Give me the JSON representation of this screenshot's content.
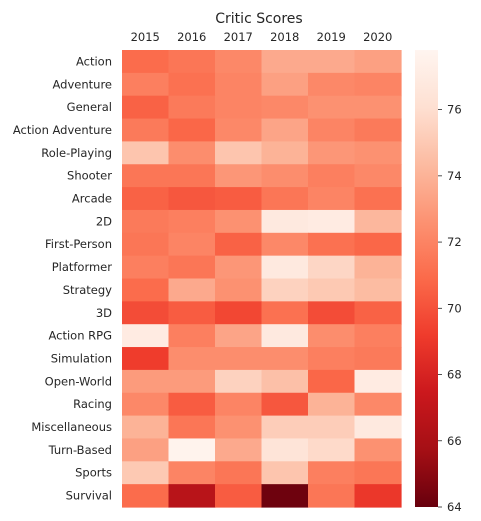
{
  "chart_data": {
    "type": "heatmap",
    "title": "Critic Scores",
    "xlabel": "",
    "ylabel": "",
    "columns": [
      "2015",
      "2016",
      "2017",
      "2018",
      "2019",
      "2020"
    ],
    "rows": [
      "Action",
      "Adventure",
      "General",
      "Action Adventure",
      "Role-Playing",
      "Shooter",
      "Arcade",
      "2D",
      "First-Person",
      "Platformer",
      "Strategy",
      "3D",
      "Action RPG",
      "Simulation",
      "Open-World",
      "Racing",
      "Miscellaneous",
      "Turn-Based",
      "Sports",
      "Survival"
    ],
    "values": [
      [
        71.0,
        71.4,
        72.2,
        73.6,
        73.6,
        73.2
      ],
      [
        71.8,
        71.2,
        72.0,
        73.2,
        72.2,
        72.0
      ],
      [
        70.6,
        71.6,
        72.0,
        72.2,
        72.6,
        72.6
      ],
      [
        71.6,
        70.8,
        72.2,
        73.4,
        72.0,
        71.6
      ],
      [
        74.8,
        72.4,
        74.8,
        74.0,
        72.8,
        72.6
      ],
      [
        71.4,
        71.4,
        72.8,
        72.4,
        71.8,
        72.2
      ],
      [
        70.6,
        70.2,
        70.4,
        71.4,
        72.0,
        71.2
      ],
      [
        71.6,
        71.8,
        72.6,
        76.8,
        77.0,
        74.2
      ],
      [
        71.4,
        72.0,
        70.6,
        72.2,
        71.2,
        70.8
      ],
      [
        71.8,
        71.4,
        72.8,
        76.8,
        75.6,
        74.0
      ],
      [
        71.0,
        73.6,
        72.6,
        75.4,
        75.0,
        74.4
      ],
      [
        69.8,
        70.4,
        69.6,
        71.2,
        69.8,
        70.6
      ],
      [
        77.0,
        71.8,
        73.4,
        76.8,
        72.4,
        71.8
      ],
      [
        69.2,
        72.4,
        72.4,
        72.4,
        71.8,
        71.6
      ],
      [
        73.0,
        73.0,
        75.4,
        74.6,
        70.8,
        77.0
      ],
      [
        72.2,
        70.4,
        72.0,
        70.2,
        74.0,
        72.2
      ],
      [
        74.0,
        71.4,
        72.6,
        75.2,
        75.2,
        76.8
      ],
      [
        73.2,
        77.6,
        73.6,
        76.4,
        75.8,
        72.6
      ],
      [
        75.0,
        72.0,
        71.4,
        74.8,
        71.8,
        71.4
      ],
      [
        71.0,
        66.6,
        70.4,
        64.2,
        71.4,
        69.0
      ]
    ],
    "colorbar": {
      "min": 64.0,
      "max": 77.8,
      "ticks": [
        64,
        66,
        68,
        70,
        72,
        74,
        76
      ],
      "colormap": "Reds_r"
    },
    "colors": {
      "low": "#67000d",
      "high": "#fff5f0",
      "text": "#262626"
    }
  }
}
